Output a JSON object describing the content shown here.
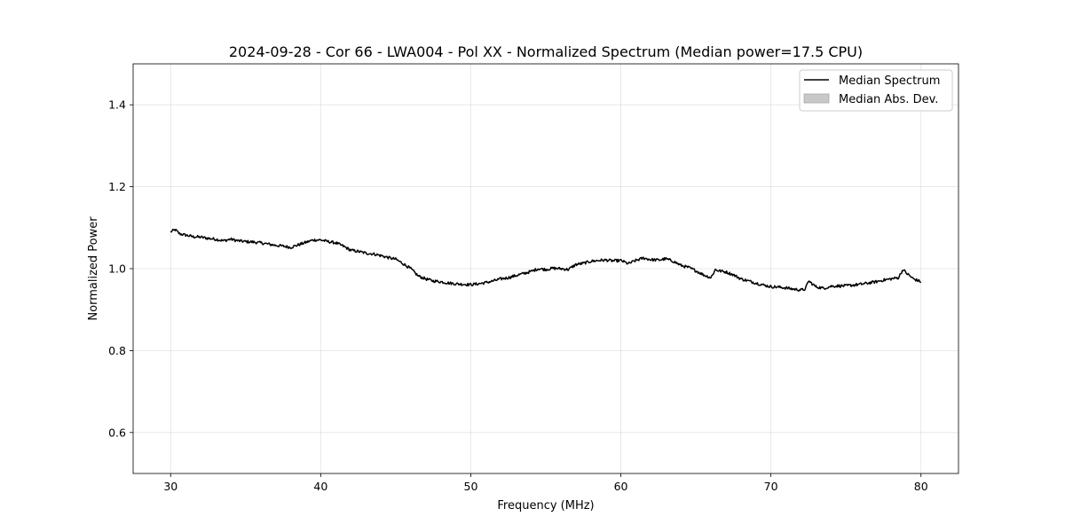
{
  "chart_data": {
    "type": "line",
    "title": "2024-09-28 - Cor 66 - LWA004 - Pol XX - Normalized Spectrum (Median power=17.5 CPU)",
    "xlabel": "Frequency (MHz)",
    "ylabel": "Normalized Power",
    "xlim": [
      27.5,
      82.5
    ],
    "ylim": [
      0.5,
      1.5
    ],
    "xticks": [
      30,
      40,
      50,
      60,
      70,
      80
    ],
    "yticks": [
      0.6,
      0.8,
      1.0,
      1.2,
      1.4
    ],
    "xtick_labels": [
      "30",
      "40",
      "50",
      "60",
      "70",
      "80"
    ],
    "ytick_labels": [
      "0.6",
      "0.8",
      "1.0",
      "1.2",
      "1.4"
    ],
    "grid": true,
    "legend": {
      "position": "top-right",
      "entries": [
        "Median Spectrum",
        "Median Abs. Dev."
      ]
    },
    "series": [
      {
        "name": "Median Spectrum",
        "color": "#000000",
        "x": [
          30.0,
          30.3,
          30.6,
          31.0,
          31.5,
          32.0,
          32.5,
          33.0,
          33.5,
          34.0,
          34.5,
          35.0,
          35.5,
          36.0,
          36.5,
          37.0,
          37.5,
          38.0,
          38.5,
          39.0,
          39.5,
          40.0,
          40.5,
          41.0,
          41.5,
          42.0,
          42.5,
          43.0,
          43.5,
          44.0,
          44.5,
          45.0,
          45.5,
          46.0,
          46.5,
          47.0,
          47.5,
          48.0,
          48.5,
          49.0,
          49.5,
          50.0,
          50.5,
          51.0,
          51.5,
          52.0,
          52.5,
          53.0,
          53.5,
          54.0,
          54.5,
          55.0,
          55.5,
          56.0,
          56.5,
          57.0,
          57.5,
          58.0,
          58.5,
          59.0,
          59.5,
          60.0,
          60.5,
          61.0,
          61.5,
          62.0,
          62.5,
          63.0,
          63.5,
          64.0,
          64.5,
          65.0,
          65.5,
          66.0,
          66.3,
          66.5,
          67.0,
          67.5,
          68.0,
          68.5,
          69.0,
          69.5,
          70.0,
          70.5,
          71.0,
          71.5,
          72.0,
          72.3,
          72.5,
          73.0,
          73.5,
          74.0,
          74.5,
          75.0,
          75.5,
          76.0,
          76.5,
          77.0,
          77.5,
          78.0,
          78.5,
          78.8,
          79.0,
          79.5,
          80.0
        ],
        "y": [
          1.09,
          1.095,
          1.085,
          1.082,
          1.078,
          1.077,
          1.074,
          1.072,
          1.068,
          1.072,
          1.068,
          1.066,
          1.065,
          1.063,
          1.06,
          1.057,
          1.055,
          1.052,
          1.058,
          1.064,
          1.07,
          1.07,
          1.066,
          1.063,
          1.055,
          1.045,
          1.042,
          1.038,
          1.036,
          1.032,
          1.027,
          1.023,
          1.012,
          1.0,
          0.982,
          0.975,
          0.97,
          0.968,
          0.965,
          0.963,
          0.962,
          0.961,
          0.963,
          0.966,
          0.97,
          0.975,
          0.978,
          0.983,
          0.988,
          0.993,
          1.0,
          0.998,
          1.001,
          1.0,
          0.998,
          1.01,
          1.013,
          1.018,
          1.02,
          1.021,
          1.019,
          1.02,
          1.012,
          1.02,
          1.026,
          1.022,
          1.021,
          1.024,
          1.018,
          1.008,
          1.003,
          0.995,
          0.985,
          0.978,
          0.998,
          0.995,
          0.992,
          0.985,
          0.975,
          0.97,
          0.965,
          0.96,
          0.956,
          0.955,
          0.953,
          0.95,
          0.948,
          0.95,
          0.97,
          0.956,
          0.952,
          0.957,
          0.958,
          0.958,
          0.96,
          0.962,
          0.965,
          0.968,
          0.972,
          0.975,
          0.978,
          0.998,
          0.99,
          0.975,
          0.968
        ]
      },
      {
        "name": "Median Abs. Dev.",
        "color": "#c8c8c8",
        "type": "band"
      }
    ]
  }
}
